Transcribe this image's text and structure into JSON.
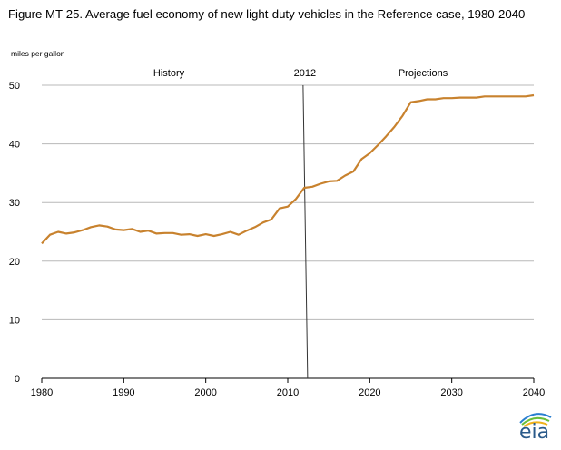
{
  "title": "Figure MT-25. Average fuel economy of new light-duty vehicles in the Reference case, 1980-2040",
  "logo_text": "eia",
  "chart_data": {
    "type": "line",
    "title": "Figure MT-25. Average fuel economy of new light-duty vehicles in the Reference case, 1980-2040",
    "xlabel": "",
    "ylabel": "miles per gallon",
    "xlim": [
      1980,
      2040
    ],
    "ylim": [
      0,
      50
    ],
    "xticks": [
      1980,
      1990,
      2000,
      2010,
      2020,
      2030,
      2040
    ],
    "yticks": [
      0,
      10,
      20,
      30,
      40,
      50
    ],
    "grid": "horizontal",
    "line_color": "#c8822e",
    "annotations": {
      "history": "History",
      "divider_year_label": "2012",
      "divider_year": 2012.2,
      "projections": "Projections"
    },
    "series": [
      {
        "x": [
          1980,
          1981,
          1982,
          1983,
          1984,
          1985,
          1986,
          1987,
          1988,
          1989,
          1990,
          1991,
          1992,
          1993,
          1994,
          1995,
          1996,
          1997,
          1998,
          1999,
          2000,
          2001,
          2002,
          2003,
          2004,
          2005,
          2006,
          2007,
          2008,
          2009,
          2010,
          2011,
          2012,
          2013,
          2014,
          2015,
          2016,
          2017,
          2018,
          2019,
          2020,
          2021,
          2022,
          2023,
          2024,
          2025,
          2026,
          2027,
          2028,
          2029,
          2030,
          2031,
          2032,
          2033,
          2034,
          2035,
          2036,
          2037,
          2038,
          2039,
          2040
        ],
        "values": [
          23.0,
          24.5,
          25.0,
          24.7,
          24.9,
          25.3,
          25.8,
          26.1,
          25.9,
          25.4,
          25.3,
          25.5,
          25.0,
          25.2,
          24.7,
          24.8,
          24.8,
          24.5,
          24.6,
          24.3,
          24.6,
          24.3,
          24.6,
          25.0,
          24.5,
          25.2,
          25.8,
          26.6,
          27.1,
          29.0,
          29.3,
          30.6,
          32.5,
          32.7,
          33.2,
          33.6,
          33.7,
          34.6,
          35.3,
          37.4,
          38.4,
          39.8,
          41.3,
          42.9,
          44.8,
          47.1,
          47.3,
          47.6,
          47.6,
          47.8,
          47.8,
          47.9,
          47.9,
          47.9,
          48.1,
          48.1,
          48.1,
          48.1,
          48.1,
          48.1,
          48.3
        ]
      }
    ]
  }
}
